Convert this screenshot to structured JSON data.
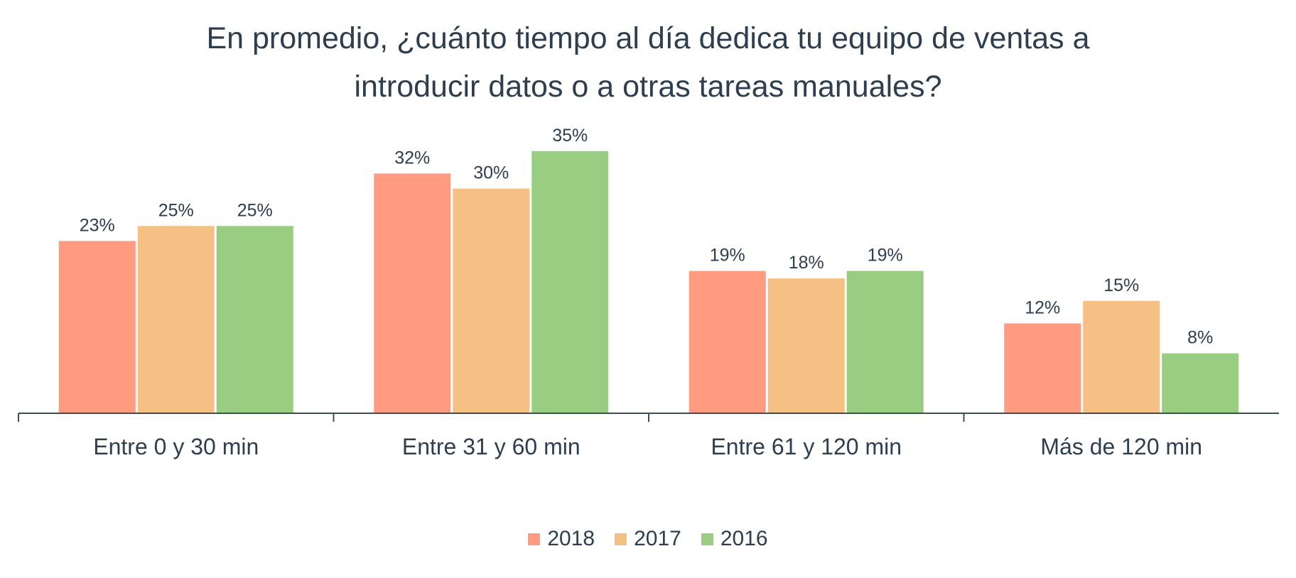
{
  "chart_data": {
    "type": "bar",
    "title_lines": [
      "En promedio, ¿cuánto tiempo al día dedica tu equipo de ventas a",
      "introducir datos o a otras tareas manuales?"
    ],
    "categories": [
      "Entre 0 y 30 min",
      "Entre 31 y 60 min",
      "Entre 61 y 120 min",
      "Más de 120 min"
    ],
    "series": [
      {
        "name": "2018",
        "color": "#fe9b80",
        "values": [
          23,
          32,
          19,
          12
        ],
        "labels": [
          "23%",
          "32%",
          "19%",
          "12%"
        ]
      },
      {
        "name": "2017",
        "color": "#f4c083",
        "values": [
          25,
          30,
          18,
          15
        ],
        "labels": [
          "25%",
          "30%",
          "18%",
          "15%"
        ]
      },
      {
        "name": "2016",
        "color": "#99cd82",
        "values": [
          25,
          35,
          19,
          8
        ],
        "labels": [
          "25%",
          "35%",
          "19%",
          "8%"
        ]
      }
    ],
    "value_unit": "%",
    "ylim": [
      0,
      40
    ],
    "grid": false,
    "legend_position": "bottom-center",
    "axis_color": "#3d4d5e"
  }
}
